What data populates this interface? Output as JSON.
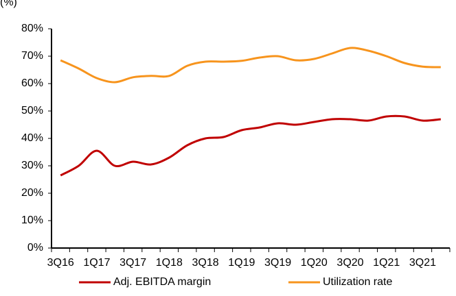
{
  "chart_data": {
    "type": "line",
    "y_axis_label": "(%)",
    "categories": [
      "3Q16",
      null,
      "1Q17",
      null,
      "3Q17",
      null,
      "1Q18",
      null,
      "3Q18",
      null,
      "1Q19",
      null,
      "3Q19",
      null,
      "1Q20",
      null,
      "3Q20",
      null,
      "1Q21",
      null,
      "3Q21",
      null
    ],
    "series": [
      {
        "name": "Adj. EBITDA margin",
        "color": "#c00000",
        "values": [
          26.5,
          30,
          35.5,
          30,
          31.5,
          30.5,
          33,
          37.5,
          40,
          40.5,
          43,
          44,
          45.5,
          45,
          46,
          47,
          47,
          46.5,
          48,
          48,
          46.5,
          47
        ]
      },
      {
        "name": "Utilization rate",
        "color": "#f7941d",
        "values": [
          68.5,
          65.5,
          62,
          60.5,
          62.3,
          62.8,
          62.8,
          66.5,
          68,
          68,
          68.3,
          69.5,
          70,
          68.5,
          69,
          71,
          73,
          72,
          70,
          67.5,
          66.2,
          66
        ]
      }
    ],
    "ylim": [
      0,
      80
    ],
    "yticks": [
      {
        "value": 0,
        "label": "0%"
      },
      {
        "value": 10,
        "label": "10%"
      },
      {
        "value": 20,
        "label": "20%"
      },
      {
        "value": 30,
        "label": "30%"
      },
      {
        "value": 40,
        "label": "40%"
      },
      {
        "value": 50,
        "label": "50%"
      },
      {
        "value": 60,
        "label": "60%"
      },
      {
        "value": 70,
        "label": "70%"
      },
      {
        "value": 80,
        "label": "80%"
      }
    ],
    "legend": "bottom"
  }
}
